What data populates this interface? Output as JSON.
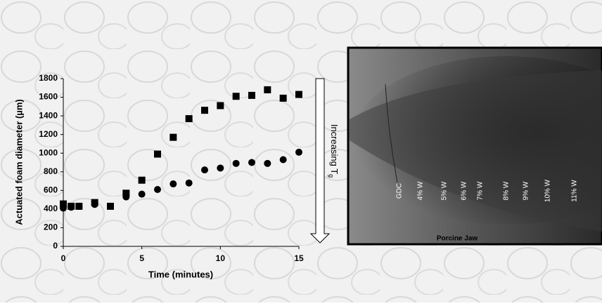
{
  "chart_data": {
    "type": "scatter",
    "xlabel": "Time (minutes)",
    "ylabel": "Actuated foam diameter (µm)",
    "xlim": [
      0,
      15
    ],
    "xticks": [
      0,
      5,
      10,
      15
    ],
    "ylim": [
      0,
      1800
    ],
    "yticks": [
      0,
      200,
      400,
      600,
      800,
      1000,
      1200,
      1400,
      1600,
      1800
    ],
    "series": [
      {
        "marker": "square",
        "color": "#000000",
        "x": [
          0,
          0.5,
          1,
          2,
          3,
          4,
          5,
          6,
          7,
          8,
          9,
          10,
          11,
          12,
          13,
          14,
          15
        ],
        "values": [
          455,
          430,
          430,
          470,
          430,
          570,
          710,
          990,
          1170,
          1370,
          1460,
          1510,
          1610,
          1620,
          1680,
          1590,
          1630
        ]
      },
      {
        "marker": "circle",
        "color": "#000000",
        "x": [
          0,
          0.5,
          1,
          2,
          4,
          5,
          6,
          7,
          8,
          9,
          10,
          11,
          12,
          13,
          14,
          15
        ],
        "values": [
          410,
          420,
          430,
          450,
          530,
          560,
          610,
          670,
          680,
          820,
          840,
          890,
          900,
          890,
          930,
          1010
        ]
      }
    ],
    "annotation": {
      "text": "Increasing T",
      "subscript": "g"
    }
  },
  "image_panel": {
    "labels": [
      "GDC",
      "4% W",
      "5% W",
      "6% W",
      "7% W",
      "8% W",
      "9% W",
      "10% W",
      "11% W"
    ],
    "caption": "Porcine Jaw"
  }
}
